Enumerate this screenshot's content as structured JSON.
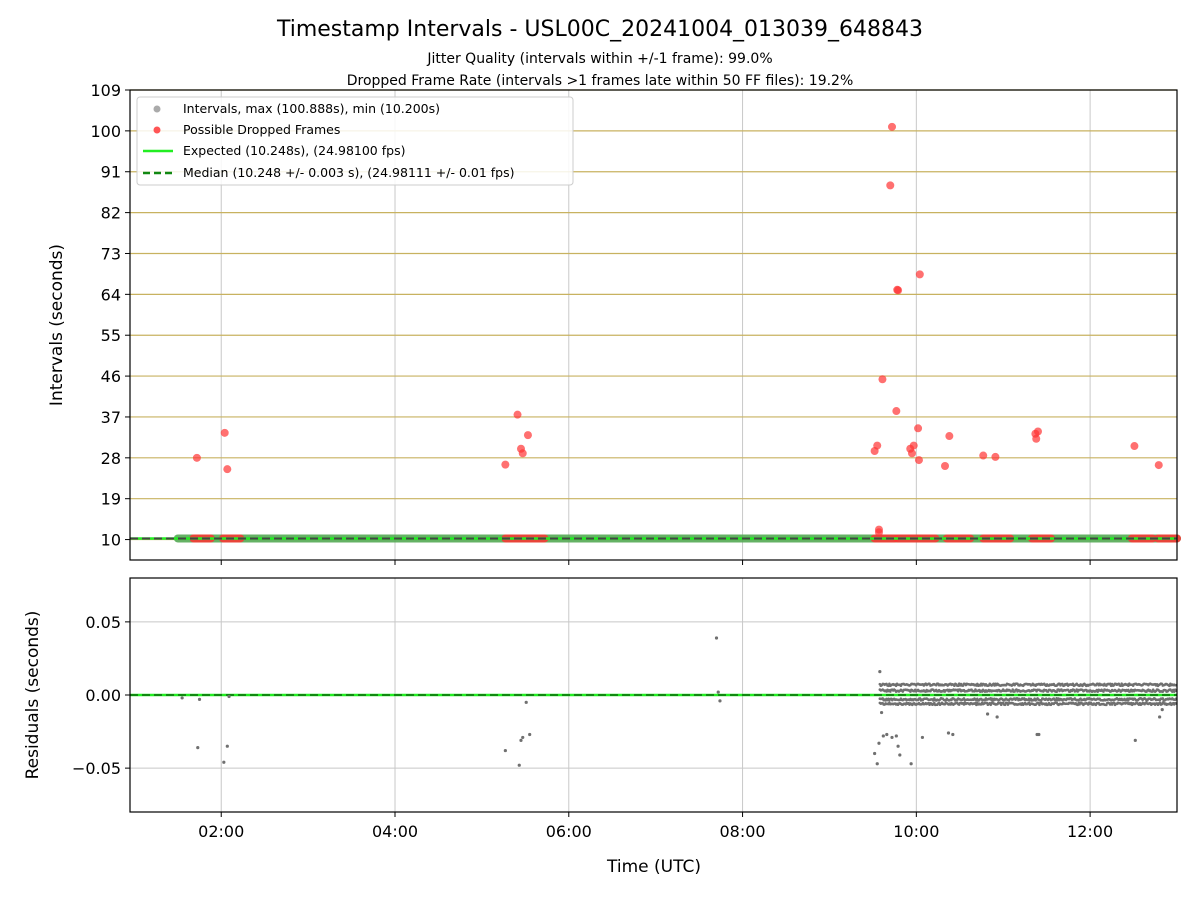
{
  "figure": {
    "title": "Timestamp Intervals - USL00C_20241004_013039_648843",
    "subtitle1": "Jitter Quality (intervals within +/-1 frame): 99.0%",
    "subtitle2": "Dropped Frame Rate (intervals >1 frames late within 50 FF files): 19.2%"
  },
  "colors": {
    "intervals": "#8c8c8c",
    "dropped": "#ff3333",
    "expected": "#22ee22",
    "median": "#118811",
    "threshold_grid": "#c8b260",
    "grid": "#c8c8c8",
    "residuals": "#707070"
  },
  "chart_data": [
    {
      "type": "scatter",
      "name": "intervals",
      "xlabel": "",
      "ylabel": "Intervals (seconds)",
      "x_unit": "hours UTC",
      "xlim": [
        0.95,
        13.0
      ],
      "ylim": [
        5.5,
        109
      ],
      "yticks": [
        10,
        19,
        28,
        37,
        46,
        55,
        64,
        73,
        82,
        91,
        100,
        109
      ],
      "ytick_labels": [
        "10",
        "19",
        "28",
        "37",
        "46",
        "55",
        "64",
        "73",
        "82",
        "91",
        "100",
        "109"
      ],
      "grid": true,
      "legend_placement": "upper-left",
      "legend": [
        {
          "label": "Intervals, max (100.888s), min (10.200s)",
          "kind": "marker",
          "color": "#aaaaaa"
        },
        {
          "label": "Possible Dropped Frames",
          "kind": "marker",
          "color": "#ff5555"
        },
        {
          "label": "Expected (10.248s), (24.98100 fps)",
          "kind": "line",
          "color": "#22ee22"
        },
        {
          "label": "Median (10.248 +/- 0.003 s), (24.98111 +/- 0.01 fps)",
          "kind": "dashed",
          "color": "#118811"
        }
      ],
      "expected_value": 10.248,
      "median_value": 10.248,
      "baseline_segments": [
        [
          1.5,
          13.0
        ]
      ],
      "dropped_band_segments": [
        [
          1.68,
          1.88
        ],
        [
          2.02,
          2.22
        ],
        [
          5.27,
          5.72
        ],
        [
          9.52,
          9.75
        ],
        [
          9.78,
          10.22
        ],
        [
          10.35,
          10.62
        ],
        [
          10.77,
          11.08
        ],
        [
          11.33,
          11.55
        ],
        [
          12.48,
          12.72
        ],
        [
          12.78,
          13.0
        ]
      ],
      "dropped_points": {
        "x": [
          1.72,
          2.04,
          2.07,
          5.27,
          5.41,
          5.45,
          5.47,
          5.53,
          9.52,
          9.55,
          9.57,
          9.57,
          9.61,
          9.7,
          9.72,
          9.77,
          9.79,
          9.78,
          9.93,
          9.95,
          9.97,
          10.02,
          10.03,
          10.04,
          10.33,
          10.38,
          10.77,
          10.91,
          11.37,
          11.38,
          11.4,
          12.51,
          12.79
        ],
        "y": [
          28.0,
          33.5,
          25.5,
          26.5,
          37.5,
          30.0,
          29.0,
          33.0,
          29.5,
          30.7,
          11.6,
          12.2,
          45.3,
          88.0,
          100.888,
          38.3,
          64.9,
          65.0,
          30.0,
          29.0,
          30.7,
          34.5,
          27.5,
          68.4,
          26.2,
          32.8,
          28.5,
          28.2,
          33.3,
          32.2,
          33.8,
          30.6,
          26.4
        ]
      },
      "xticks": [
        2,
        4,
        6,
        8,
        10,
        12
      ]
    },
    {
      "type": "scatter",
      "name": "residuals",
      "xlabel": "Time (UTC)",
      "ylabel": "Residuals (seconds)",
      "x_unit": "hours UTC",
      "xlim": [
        0.95,
        13.0
      ],
      "ylim": [
        -0.08,
        0.08
      ],
      "yticks": [
        -0.05,
        0.0,
        0.05
      ],
      "ytick_labels": [
        "−0.05",
        "0.00",
        "0.05"
      ],
      "xticks": [
        2,
        4,
        6,
        8,
        10,
        12
      ],
      "xtick_labels": [
        "02:00",
        "04:00",
        "06:00",
        "08:00",
        "10:00",
        "12:00"
      ],
      "grid": true,
      "zero_line_value": 0.0,
      "outliers": {
        "x": [
          1.55,
          1.73,
          1.75,
          2.03,
          2.07,
          2.09,
          5.27,
          5.43,
          5.45,
          5.47,
          5.51,
          5.55,
          7.7,
          7.72,
          7.74,
          9.52,
          9.55,
          9.57,
          9.58,
          9.6,
          9.62,
          9.66,
          9.72,
          9.77,
          9.79,
          9.81,
          9.94,
          10.07,
          10.37,
          10.42,
          10.82,
          10.93,
          11.39,
          11.41,
          12.52,
          12.8,
          12.83
        ],
        "y": [
          -0.002,
          -0.036,
          -0.003,
          -0.046,
          -0.035,
          -0.001,
          -0.038,
          -0.048,
          -0.031,
          -0.029,
          -0.005,
          -0.027,
          0.039,
          0.002,
          -0.004,
          -0.04,
          -0.047,
          -0.033,
          0.016,
          -0.012,
          -0.028,
          -0.027,
          -0.029,
          -0.028,
          -0.035,
          -0.041,
          -0.047,
          -0.029,
          -0.026,
          -0.027,
          -0.013,
          -0.015,
          -0.027,
          -0.027,
          -0.031,
          -0.015,
          -0.01
        ]
      },
      "dense_band": {
        "x_start": 9.58,
        "x_end": 13.0,
        "y_values": [
          -0.006,
          -0.003,
          0.003,
          0.007
        ]
      }
    }
  ]
}
